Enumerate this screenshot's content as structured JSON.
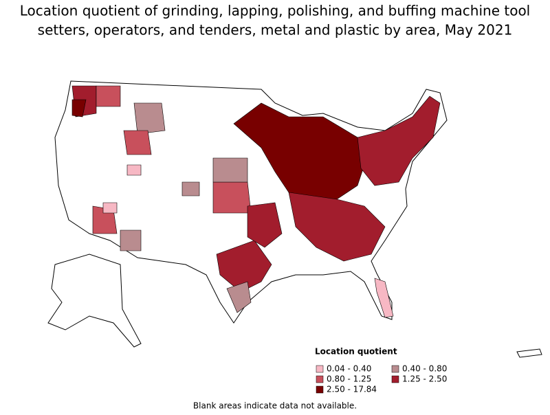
{
  "header": {
    "title_lines": [
      "Location quotient of grinding, lapping, polishing, and buffing machine tool",
      "setters, operators, and tenders, metal and plastic by area, May 2021"
    ]
  },
  "legend": {
    "title": "Location quotient",
    "items": [
      {
        "label": "0.04 - 0.40",
        "color": "#f7b8c4"
      },
      {
        "label": "0.40 - 0.80",
        "color": "#b98c8f"
      },
      {
        "label": "0.80 - 1.25",
        "color": "#c8505c"
      },
      {
        "label": "1.25 - 2.50",
        "color": "#a21d2d"
      },
      {
        "label": "2.50 - 17.84",
        "color": "#780000"
      }
    ]
  },
  "footnote": "Blank areas indicate data not available."
}
